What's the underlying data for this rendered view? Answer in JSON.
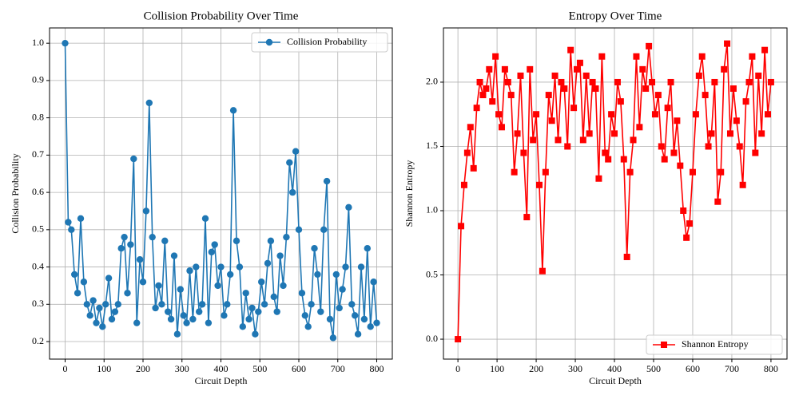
{
  "chart_data": [
    {
      "type": "line",
      "title": "Collision Probability Over Time",
      "xlabel": "Circuit Depth",
      "ylabel": "Collision Probability",
      "x": [
        0,
        8,
        16,
        24,
        32,
        40,
        48,
        56,
        64,
        72,
        80,
        88,
        96,
        104,
        112,
        120,
        128,
        136,
        144,
        152,
        160,
        168,
        176,
        184,
        192,
        200,
        208,
        216,
        224,
        232,
        240,
        248,
        256,
        264,
        272,
        280,
        288,
        296,
        304,
        312,
        320,
        328,
        336,
        344,
        352,
        360,
        368,
        376,
        384,
        392,
        400,
        408,
        416,
        424,
        432,
        440,
        448,
        456,
        464,
        472,
        480,
        488,
        496,
        504,
        512,
        520,
        528,
        536,
        544,
        552,
        560,
        568,
        576,
        584,
        592,
        600,
        608,
        616,
        624,
        632,
        640,
        648,
        656,
        664,
        672,
        680,
        688,
        696,
        704,
        712,
        720,
        728,
        736,
        744,
        752,
        760,
        768,
        776,
        784,
        792,
        800
      ],
      "series": [
        {
          "name": "Collision Probability",
          "color": "#1f77b4",
          "marker": "o",
          "values": [
            1.0,
            0.52,
            0.5,
            0.38,
            0.33,
            0.53,
            0.36,
            0.3,
            0.27,
            0.31,
            0.25,
            0.29,
            0.24,
            0.3,
            0.37,
            0.26,
            0.28,
            0.3,
            0.45,
            0.48,
            0.33,
            0.46,
            0.69,
            0.25,
            0.42,
            0.36,
            0.55,
            0.84,
            0.48,
            0.29,
            0.35,
            0.3,
            0.47,
            0.28,
            0.26,
            0.43,
            0.22,
            0.34,
            0.27,
            0.25,
            0.39,
            0.26,
            0.4,
            0.28,
            0.3,
            0.53,
            0.25,
            0.44,
            0.46,
            0.35,
            0.4,
            0.27,
            0.3,
            0.38,
            0.82,
            0.47,
            0.4,
            0.24,
            0.33,
            0.26,
            0.29,
            0.22,
            0.28,
            0.36,
            0.3,
            0.41,
            0.47,
            0.32,
            0.28,
            0.43,
            0.35,
            0.48,
            0.68,
            0.6,
            0.71,
            0.5,
            0.33,
            0.27,
            0.24,
            0.3,
            0.45,
            0.38,
            0.28,
            0.5,
            0.63,
            0.26,
            0.21,
            0.38,
            0.29,
            0.34,
            0.4,
            0.56,
            0.3,
            0.27,
            0.22,
            0.4,
            0.26,
            0.45,
            0.24,
            0.36,
            0.25
          ]
        }
      ],
      "xlim": [
        -40,
        840
      ],
      "ylim": [
        0.153,
        1.041
      ],
      "xticks": [
        0,
        100,
        200,
        300,
        400,
        500,
        600,
        700,
        800
      ],
      "yticks": [
        0.2,
        0.3,
        0.4,
        0.5,
        0.6,
        0.7,
        0.8,
        0.9,
        {
          "value": 1,
          "label": "1.0"
        }
      ],
      "grid": true,
      "legend": "upper right"
    },
    {
      "type": "line",
      "title": "Entropy Over Time",
      "xlabel": "Circuit Depth",
      "ylabel": "Shannon Entropy",
      "x": [
        0,
        8,
        16,
        24,
        32,
        40,
        48,
        56,
        64,
        72,
        80,
        88,
        96,
        104,
        112,
        120,
        128,
        136,
        144,
        152,
        160,
        168,
        176,
        184,
        192,
        200,
        208,
        216,
        224,
        232,
        240,
        248,
        256,
        264,
        272,
        280,
        288,
        296,
        304,
        312,
        320,
        328,
        336,
        344,
        352,
        360,
        368,
        376,
        384,
        392,
        400,
        408,
        416,
        424,
        432,
        440,
        448,
        456,
        464,
        472,
        480,
        488,
        496,
        504,
        512,
        520,
        528,
        536,
        544,
        552,
        560,
        568,
        576,
        584,
        592,
        600,
        608,
        616,
        624,
        632,
        640,
        648,
        656,
        664,
        672,
        680,
        688,
        696,
        704,
        712,
        720,
        728,
        736,
        744,
        752,
        760,
        768,
        776,
        784,
        792,
        800
      ],
      "series": [
        {
          "name": "Shannon Entropy",
          "color": "#ff0000",
          "marker": "s",
          "values": [
            0,
            0.88,
            1.2,
            1.45,
            1.65,
            1.33,
            1.8,
            2.0,
            1.9,
            1.95,
            2.1,
            1.85,
            2.2,
            1.75,
            1.65,
            2.1,
            2.0,
            1.9,
            1.3,
            1.6,
            2.05,
            1.45,
            0.95,
            2.1,
            1.55,
            1.75,
            1.2,
            0.53,
            1.3,
            1.9,
            1.7,
            2.05,
            1.55,
            2.0,
            1.95,
            1.5,
            2.25,
            1.8,
            2.1,
            2.15,
            1.55,
            2.05,
            1.6,
            2.0,
            1.95,
            1.25,
            2.2,
            1.45,
            1.4,
            1.75,
            1.6,
            2.0,
            1.85,
            1.4,
            0.64,
            1.3,
            1.55,
            2.2,
            1.65,
            2.1,
            1.95,
            2.28,
            2.0,
            1.75,
            1.9,
            1.5,
            1.4,
            1.8,
            2.0,
            1.45,
            1.7,
            1.35,
            1.0,
            0.79,
            0.9,
            1.3,
            1.75,
            2.05,
            2.2,
            1.9,
            1.5,
            1.6,
            2.0,
            1.07,
            1.3,
            2.1,
            2.3,
            1.6,
            1.95,
            1.7,
            1.5,
            1.2,
            1.85,
            2.0,
            2.2,
            1.45,
            2.05,
            1.6,
            2.25,
            1.75,
            2.0
          ]
        }
      ],
      "xlim": [
        -37,
        841
      ],
      "ylim": [
        -0.155,
        2.422
      ],
      "xticks": [
        0,
        100,
        200,
        300,
        400,
        500,
        600,
        700,
        800
      ],
      "yticks": [
        {
          "value": 0,
          "label": "0.0"
        },
        0.5,
        {
          "value": 1,
          "label": "1.0"
        },
        1.5,
        {
          "value": 2,
          "label": "2.0"
        }
      ],
      "grid": true,
      "legend": "lower right"
    }
  ]
}
